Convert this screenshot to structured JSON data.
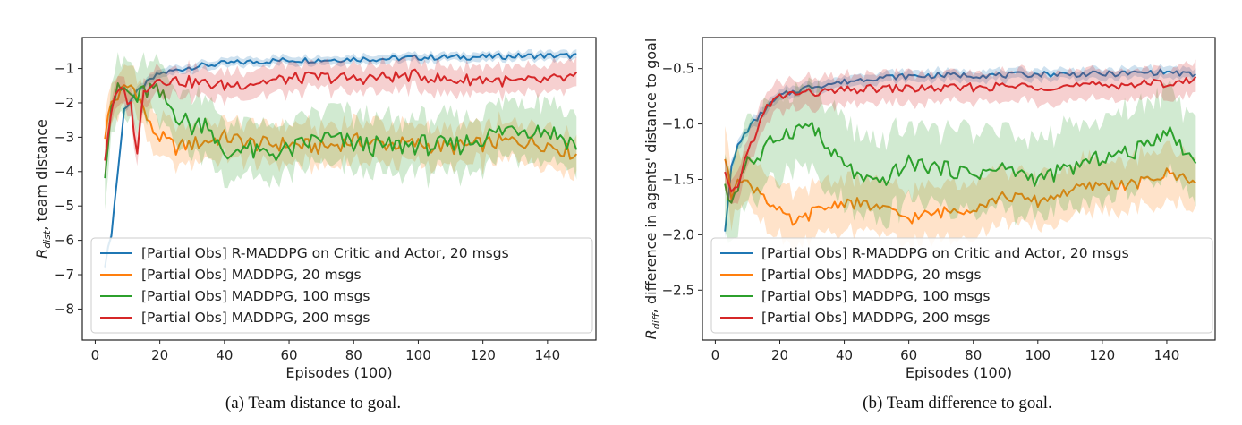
{
  "figure": {
    "colors": {
      "blue": "#1f77b4",
      "orange": "#ff7f0e",
      "green": "#2ca02c",
      "red": "#d62728"
    }
  },
  "chart_data": [
    {
      "type": "line",
      "caption": "(a) Team distance to goal.",
      "xlabel": "Episodes (100)",
      "ylabel": "R_dist, team distance",
      "ylabel_parts": {
        "main": "R",
        "sub": "dist",
        "rest": ", team distance"
      },
      "xlim": [
        -4,
        155
      ],
      "ylim": [
        -8.9,
        -0.1
      ],
      "xticks": [
        0,
        20,
        40,
        60,
        80,
        100,
        120,
        140
      ],
      "yticks": [
        -1,
        -2,
        -3,
        -4,
        -5,
        -6,
        -7,
        -8
      ],
      "grid": false,
      "legend_position": "lower-left",
      "series": [
        {
          "name": "[Partial Obs] R-MADDPG on Critic and Actor, 20 msgs",
          "color": "blue",
          "points": [
            [
              3,
              -6.7
            ],
            [
              5,
              -5.8
            ],
            [
              7,
              -4.0
            ],
            [
              9,
              -2.2
            ],
            [
              11,
              -1.9
            ],
            [
              13,
              -1.7
            ],
            [
              15,
              -1.5
            ],
            [
              17,
              -1.35
            ],
            [
              20,
              -1.15
            ],
            [
              25,
              -1.05
            ],
            [
              30,
              -0.95
            ],
            [
              40,
              -0.85
            ],
            [
              50,
              -0.8
            ],
            [
              60,
              -0.75
            ],
            [
              70,
              -0.75
            ],
            [
              80,
              -0.72
            ],
            [
              90,
              -0.72
            ],
            [
              100,
              -0.68
            ],
            [
              110,
              -0.67
            ],
            [
              120,
              -0.66
            ],
            [
              130,
              -0.64
            ],
            [
              140,
              -0.63
            ],
            [
              149,
              -0.63
            ]
          ],
          "band": 0.15
        },
        {
          "name": "[Partial Obs] MADDPG, 20 msgs",
          "color": "orange",
          "points": [
            [
              3,
              -2.9
            ],
            [
              5,
              -2.0
            ],
            [
              7,
              -1.8
            ],
            [
              9,
              -1.6
            ],
            [
              11,
              -1.5
            ],
            [
              13,
              -1.7
            ],
            [
              15,
              -2.2
            ],
            [
              17,
              -2.7
            ],
            [
              20,
              -3.0
            ],
            [
              25,
              -3.3
            ],
            [
              30,
              -3.2
            ],
            [
              40,
              -3.0
            ],
            [
              50,
              -3.2
            ],
            [
              60,
              -3.2
            ],
            [
              70,
              -3.3
            ],
            [
              80,
              -3.1
            ],
            [
              90,
              -3.2
            ],
            [
              100,
              -3.2
            ],
            [
              110,
              -3.3
            ],
            [
              120,
              -3.2
            ],
            [
              130,
              -3.1
            ],
            [
              140,
              -3.2
            ],
            [
              149,
              -3.5
            ]
          ],
          "band": 0.7
        },
        {
          "name": "[Partial Obs] MADDPG, 100 msgs",
          "color": "green",
          "points": [
            [
              3,
              -3.9
            ],
            [
              5,
              -2.0
            ],
            [
              7,
              -1.7
            ],
            [
              9,
              -1.6
            ],
            [
              11,
              -1.8
            ],
            [
              13,
              -1.9
            ],
            [
              15,
              -1.7
            ],
            [
              17,
              -1.6
            ],
            [
              20,
              -1.8
            ],
            [
              25,
              -2.3
            ],
            [
              30,
              -2.7
            ],
            [
              35,
              -2.5
            ],
            [
              40,
              -3.7
            ],
            [
              45,
              -3.2
            ],
            [
              50,
              -3.5
            ],
            [
              60,
              -3.4
            ],
            [
              70,
              -3.0
            ],
            [
              80,
              -3.2
            ],
            [
              90,
              -3.3
            ],
            [
              100,
              -3.2
            ],
            [
              110,
              -3.3
            ],
            [
              120,
              -3.0
            ],
            [
              130,
              -2.7
            ],
            [
              140,
              -2.8
            ],
            [
              149,
              -3.2
            ]
          ],
          "band": 1.0
        },
        {
          "name": "[Partial Obs] MADDPG, 200 msgs",
          "color": "red",
          "points": [
            [
              3,
              -3.6
            ],
            [
              5,
              -2.2
            ],
            [
              7,
              -1.7
            ],
            [
              9,
              -1.7
            ],
            [
              11,
              -2.1
            ],
            [
              13,
              -3.4
            ],
            [
              15,
              -1.7
            ],
            [
              17,
              -1.4
            ],
            [
              20,
              -1.3
            ],
            [
              25,
              -1.35
            ],
            [
              30,
              -1.4
            ],
            [
              40,
              -1.5
            ],
            [
              50,
              -1.4
            ],
            [
              60,
              -1.3
            ],
            [
              70,
              -1.25
            ],
            [
              80,
              -1.3
            ],
            [
              90,
              -1.25
            ],
            [
              100,
              -1.2
            ],
            [
              110,
              -1.35
            ],
            [
              120,
              -1.3
            ],
            [
              130,
              -1.4
            ],
            [
              140,
              -1.35
            ],
            [
              149,
              -1.25
            ]
          ],
          "band": 0.5
        }
      ]
    },
    {
      "type": "line",
      "caption": "(b) Team difference to goal.",
      "xlabel": "Episodes (100)",
      "ylabel": "R_diff, difference in agents' distance to goal",
      "ylabel_parts": {
        "main": "R",
        "sub": "diff",
        "rest": ", difference in agents' distance to goal"
      },
      "xlim": [
        -4,
        155
      ],
      "ylim": [
        -2.95,
        -0.22
      ],
      "xticks": [
        0,
        20,
        40,
        60,
        80,
        100,
        120,
        140
      ],
      "yticks": [
        -0.5,
        -1.0,
        -1.5,
        -2.0,
        -2.5
      ],
      "grid": false,
      "legend_position": "lower-left",
      "series": [
        {
          "name": "[Partial Obs] R-MADDPG on Critic and Actor, 20 msgs",
          "color": "blue",
          "points": [
            [
              3,
              -1.95
            ],
            [
              5,
              -1.4
            ],
            [
              7,
              -1.2
            ],
            [
              10,
              -1.05
            ],
            [
              13,
              -0.95
            ],
            [
              16,
              -0.85
            ],
            [
              20,
              -0.75
            ],
            [
              25,
              -0.7
            ],
            [
              30,
              -0.66
            ],
            [
              40,
              -0.62
            ],
            [
              50,
              -0.58
            ],
            [
              60,
              -0.57
            ],
            [
              70,
              -0.56
            ],
            [
              80,
              -0.56
            ],
            [
              90,
              -0.56
            ],
            [
              100,
              -0.55
            ],
            [
              110,
              -0.55
            ],
            [
              120,
              -0.55
            ],
            [
              130,
              -0.54
            ],
            [
              140,
              -0.53
            ],
            [
              149,
              -0.56
            ]
          ],
          "band": 0.06
        },
        {
          "name": "[Partial Obs] MADDPG, 20 msgs",
          "color": "orange",
          "points": [
            [
              3,
              -1.3
            ],
            [
              5,
              -1.65
            ],
            [
              7,
              -1.45
            ],
            [
              10,
              -1.55
            ],
            [
              14,
              -1.6
            ],
            [
              18,
              -1.75
            ],
            [
              22,
              -1.85
            ],
            [
              25,
              -1.9
            ],
            [
              30,
              -1.8
            ],
            [
              35,
              -1.75
            ],
            [
              40,
              -1.7
            ],
            [
              50,
              -1.75
            ],
            [
              60,
              -1.85
            ],
            [
              70,
              -1.8
            ],
            [
              80,
              -1.75
            ],
            [
              90,
              -1.65
            ],
            [
              100,
              -1.7
            ],
            [
              110,
              -1.6
            ],
            [
              120,
              -1.55
            ],
            [
              130,
              -1.55
            ],
            [
              140,
              -1.45
            ],
            [
              149,
              -1.5
            ]
          ],
          "band": 0.3
        },
        {
          "name": "[Partial Obs] MADDPG, 100 msgs",
          "color": "green",
          "points": [
            [
              3,
              -1.6
            ],
            [
              5,
              -1.7
            ],
            [
              7,
              -1.55
            ],
            [
              10,
              -1.3
            ],
            [
              13,
              -1.35
            ],
            [
              16,
              -1.2
            ],
            [
              20,
              -1.1
            ],
            [
              25,
              -1.05
            ],
            [
              30,
              -1.0
            ],
            [
              35,
              -1.25
            ],
            [
              40,
              -1.35
            ],
            [
              45,
              -1.5
            ],
            [
              50,
              -1.55
            ],
            [
              60,
              -1.35
            ],
            [
              70,
              -1.4
            ],
            [
              80,
              -1.45
            ],
            [
              90,
              -1.4
            ],
            [
              100,
              -1.5
            ],
            [
              110,
              -1.4
            ],
            [
              120,
              -1.3
            ],
            [
              130,
              -1.25
            ],
            [
              140,
              -1.05
            ],
            [
              149,
              -1.35
            ]
          ],
          "band": 0.45
        },
        {
          "name": "[Partial Obs] MADDPG, 200 msgs",
          "color": "red",
          "points": [
            [
              3,
              -1.45
            ],
            [
              5,
              -1.65
            ],
            [
              7,
              -1.55
            ],
            [
              10,
              -1.25
            ],
            [
              13,
              -1.05
            ],
            [
              16,
              -0.85
            ],
            [
              20,
              -0.75
            ],
            [
              25,
              -0.72
            ],
            [
              30,
              -0.72
            ],
            [
              40,
              -0.7
            ],
            [
              50,
              -0.68
            ],
            [
              60,
              -0.68
            ],
            [
              70,
              -0.68
            ],
            [
              80,
              -0.67
            ],
            [
              90,
              -0.66
            ],
            [
              100,
              -0.66
            ],
            [
              110,
              -0.66
            ],
            [
              120,
              -0.65
            ],
            [
              130,
              -0.64
            ],
            [
              140,
              -0.63
            ],
            [
              149,
              -0.61
            ]
          ],
          "band": 0.17
        }
      ]
    }
  ]
}
